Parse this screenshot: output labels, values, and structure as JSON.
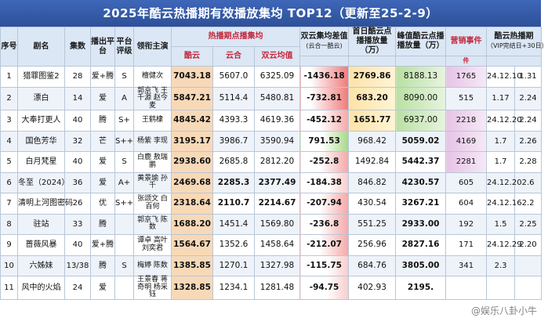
{
  "title": "2025年酷云热播期有效播放集均 TOP12（更新至25-2-9）",
  "headers": {
    "rank": "序号",
    "name": "剧名",
    "eps": "集数",
    "platform": "播出平台",
    "rating": "平台评级",
    "cast": "领衔主演",
    "hot_group": "热播期点播集均",
    "kuyun": "酷云",
    "yunhe": "云合",
    "avg": "双云均值",
    "diff": "双云集均差值",
    "diff_sub": "(云合一酷云)",
    "first": "首日酷云点播播放量（万）",
    "peak": "峰值酷云点播播放量（万）",
    "marketing": "营销事件",
    "marketing_sub": "件",
    "period": "酷云热播期",
    "period_sub": "（VIP完结日+30日）"
  },
  "rows": [
    {
      "rank": "1",
      "name": "猎罪图鉴2",
      "eps": "28",
      "platform": "爱+腾",
      "rating": "S",
      "cast": "檀健次",
      "kuyun": "7043.18",
      "yunhe": "5607.0",
      "avg": "6325.09",
      "diff": "-1436.18",
      "first": "2769.86",
      "peak": "8188.13",
      "marketing": "1765",
      "end": "24.12.10",
      "ratio": "1.31"
    },
    {
      "rank": "2",
      "name": "漂白",
      "eps": "14",
      "platform": "爱",
      "rating": "A",
      "cast": "郭京飞 王千源 赵今麦",
      "kuyun": "5847.21",
      "yunhe": "5114.4",
      "avg": "5480.81",
      "diff": "-732.81",
      "first": "683.20",
      "peak": "8090.00",
      "marketing": "515",
      "end": "1.17",
      "ratio": "2.24"
    },
    {
      "rank": "3",
      "name": "大奉打更人",
      "eps": "40",
      "platform": "腾",
      "rating": "S+",
      "cast": "王鹤棣",
      "kuyun": "4845.42",
      "yunhe": "4393.3",
      "avg": "4619.36",
      "diff": "-452.12",
      "first": "1651.77",
      "peak": "6937.00",
      "marketing": "2218",
      "end": "24.12.20",
      "ratio": "2.24"
    },
    {
      "rank": "4",
      "name": "国色芳华",
      "eps": "32",
      "platform": "芒",
      "rating": "S++",
      "cast": "杨紫 李现",
      "kuyun": "3195.17",
      "yunhe": "3986.7",
      "avg": "3590.94",
      "diff": "791.53",
      "first": "968.42",
      "peak": "5059.02",
      "marketing": "4169",
      "end": "1.7",
      "ratio": "2.26"
    },
    {
      "rank": "5",
      "name": "白月梵星",
      "eps": "40",
      "platform": "爱",
      "rating": "S",
      "cast": "白鹿 敖瑞鹏",
      "kuyun": "2938.60",
      "yunhe": "2685.8",
      "avg": "2812.20",
      "diff": "-252.8",
      "first": "1492.84",
      "peak": "5442.37",
      "marketing": "2281",
      "end": "1.7",
      "ratio": "2.28"
    },
    {
      "rank": "6",
      "name": "冬至（2024）",
      "eps": "36",
      "platform": "爱",
      "rating": "A+",
      "cast": "黄景瑜 孙千",
      "kuyun": "2469.68",
      "yunhe": "2285.3",
      "avg": "2377.49",
      "diff": "-184.38",
      "first": "846.82",
      "peak": "4230.57",
      "marketing": "605",
      "end": "24.12.20",
      "ratio": "2.6"
    },
    {
      "rank": "7",
      "name": "清明上河图密码",
      "eps": "26",
      "platform": "优",
      "rating": "S++",
      "cast": "张颂文 白百何",
      "kuyun": "2318.64",
      "yunhe": "2110.7",
      "avg": "2214.67",
      "diff": "-207.94",
      "first": "430.54",
      "peak": "3267.21",
      "marketing": "604",
      "end": "24.12.16",
      "ratio": "2.2"
    },
    {
      "rank": "8",
      "name": "驻站",
      "eps": "33",
      "platform": "腾",
      "rating": "",
      "cast": "郭京飞 陈数",
      "kuyun": "1688.20",
      "yunhe": "1451.4",
      "avg": "1569.80",
      "diff": "-236.8",
      "first": "551.25",
      "peak": "2933.00",
      "marketing": "192",
      "end": "1.5",
      "ratio": "2.25"
    },
    {
      "rank": "9",
      "name": "蔷薇风暴",
      "eps": "40",
      "platform": "爱+腾",
      "rating": "",
      "cast": "谭卓 高叶 刘奕君",
      "kuyun": "1564.67",
      "yunhe": "1352.6",
      "avg": "1458.64",
      "diff": "-212.07",
      "first": "256.96",
      "peak": "2827.16",
      "marketing": "171",
      "end": "24.12.29",
      "ratio": "2.20"
    },
    {
      "rank": "10",
      "name": "六姊妹",
      "eps": "13/38",
      "platform": "腾",
      "rating": "S",
      "cast": "梅婷 陈数",
      "kuyun": "1385.85",
      "yunhe": "1270.1",
      "avg": "1327.98",
      "diff": "-115.75",
      "first": "684.76",
      "peak": "3805.00",
      "marketing": "341",
      "end": "2.3",
      "ratio": ""
    },
    {
      "rank": "11",
      "name": "风中的火焰",
      "eps": "24",
      "platform": "爱",
      "rating": "",
      "cast": "王景春 蒋奇明 杨采钰",
      "kuyun": "1328.85",
      "yunhe": "1234.1",
      "avg": "1281.48",
      "diff": "-94.75",
      "first": "402.93",
      "peak": "2195.",
      "marketing": "",
      "end": "",
      "ratio": ""
    }
  ],
  "watermark": "@娱乐八卦小牛"
}
